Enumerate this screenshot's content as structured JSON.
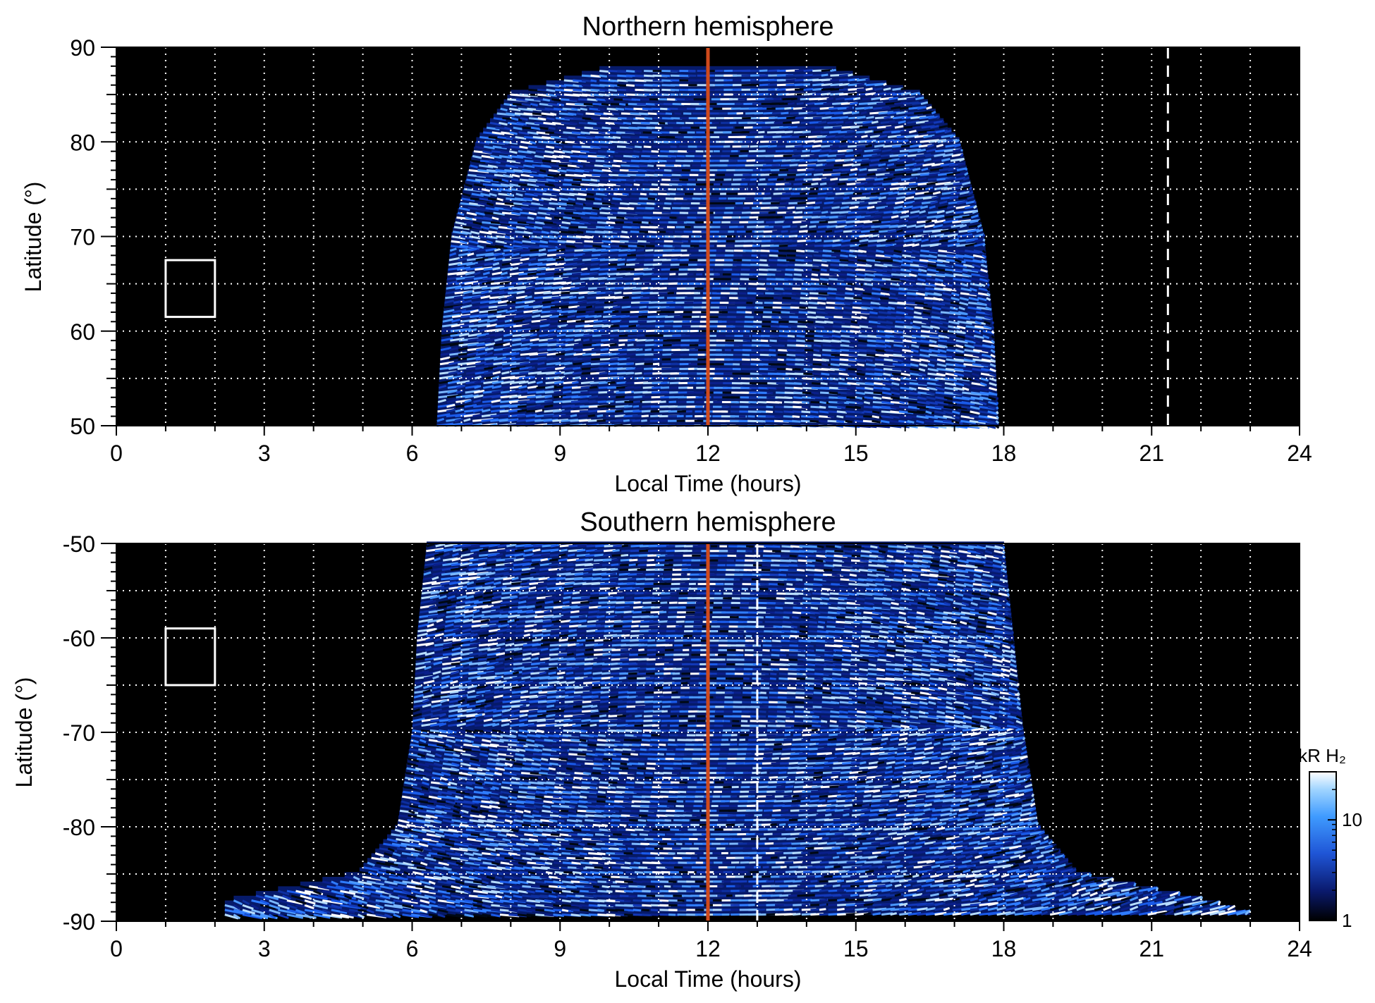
{
  "chart_data": [
    {
      "type": "heatmap",
      "title": "Northern hemisphere",
      "xlabel": "Local Time (hours)",
      "ylabel": "Latitude (°)",
      "xlim": [
        0,
        24
      ],
      "ylim": [
        50,
        90
      ],
      "xticks": [
        0,
        3,
        6,
        9,
        12,
        15,
        18,
        21,
        24
      ],
      "yticks": [
        50,
        60,
        70,
        80,
        90
      ],
      "grid": true,
      "reference_lines": [
        {
          "x": 12,
          "style": "solid",
          "color": "#d04a1c"
        },
        {
          "x": 21.33,
          "style": "dashed",
          "color": "#ffffff"
        }
      ],
      "box": {
        "x": [
          1,
          2
        ],
        "y": [
          61.5,
          67.5
        ]
      },
      "coverage": [
        {
          "lat": 50,
          "lt_start": 6.5,
          "lt_end": 17.9
        },
        {
          "lat": 60,
          "lt_start": 6.6,
          "lt_end": 17.8
        },
        {
          "lat": 70,
          "lt_start": 6.8,
          "lt_end": 17.6
        },
        {
          "lat": 80,
          "lt_start": 7.3,
          "lt_end": 17.1
        },
        {
          "lat": 85,
          "lt_start": 8.0,
          "lt_end": 16.3
        },
        {
          "lat": 87.5,
          "lt_start": 9.8,
          "lt_end": 14.6
        }
      ]
    },
    {
      "type": "heatmap",
      "title": "Southern hemisphere",
      "xlabel": "Local Time (hours)",
      "ylabel": "Latitude (°)",
      "xlim": [
        0,
        24
      ],
      "ylim": [
        -90,
        -50
      ],
      "xticks": [
        0,
        3,
        6,
        9,
        12,
        15,
        18,
        21,
        24
      ],
      "yticks": [
        -90,
        -80,
        -70,
        -60,
        -50
      ],
      "grid": true,
      "reference_lines": [
        {
          "x": 12,
          "style": "solid",
          "color": "#d04a1c"
        },
        {
          "x": 13,
          "style": "dashed",
          "color": "#ffffff"
        }
      ],
      "box": {
        "x": [
          1,
          2
        ],
        "y": [
          -65,
          -59
        ]
      },
      "coverage": [
        {
          "lat": -50,
          "lt_start": 6.3,
          "lt_end": 18.0
        },
        {
          "lat": -60,
          "lt_start": 6.1,
          "lt_end": 18.2
        },
        {
          "lat": -70,
          "lt_start": 6.0,
          "lt_end": 18.4
        },
        {
          "lat": -80,
          "lt_start": 5.7,
          "lt_end": 18.7
        },
        {
          "lat": -85,
          "lt_start": 4.9,
          "lt_end": 19.5
        },
        {
          "lat": -88,
          "lt_start": 2.2,
          "lt_end": 22.2
        },
        {
          "lat": -89.3,
          "lt_start": 2.2,
          "lt_end": 23.0
        }
      ]
    }
  ],
  "colorbar": {
    "label": "kR H₂",
    "scale": "log",
    "range": [
      1,
      30
    ],
    "ticks": [
      1,
      10
    ],
    "tick_labels": [
      "1",
      "10"
    ],
    "colors": [
      "#000000",
      "#0a1a6e",
      "#1f55d6",
      "#3f9bff",
      "#9fd4ff",
      "#ffffff"
    ]
  }
}
